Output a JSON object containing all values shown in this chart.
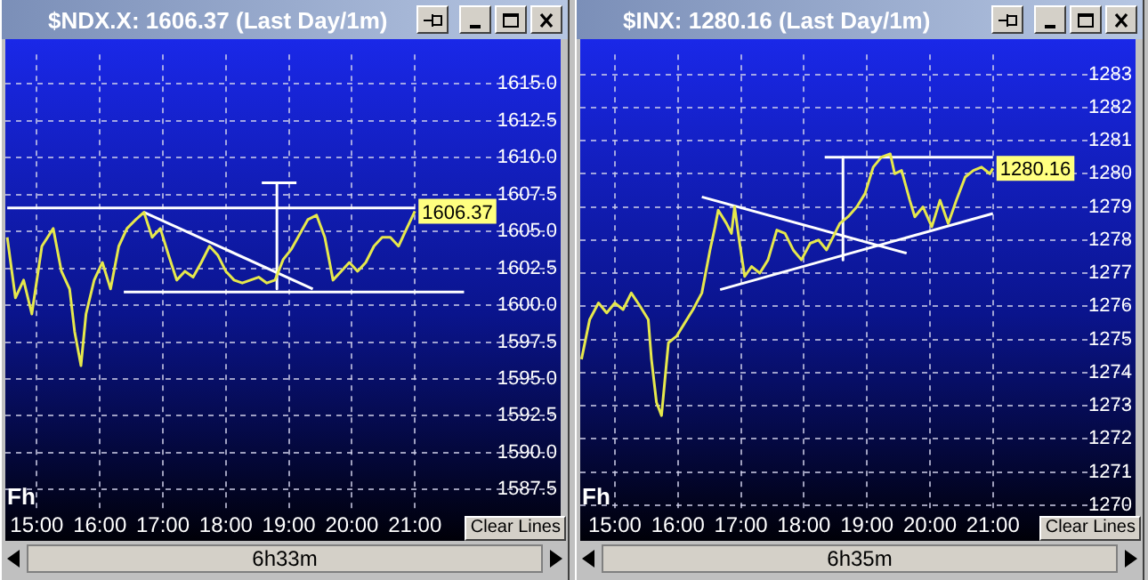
{
  "chart_data": [
    {
      "type": "line",
      "title": "$NDX.X: 1606.37 (Last Day/1m)",
      "xlim": [
        14.5,
        23.2
      ],
      "ylim": [
        1586,
        1617
      ],
      "xticks": [
        {
          "value": 15,
          "label": "15:00"
        },
        {
          "value": 16,
          "label": "16:00"
        },
        {
          "value": 17,
          "label": "17:00"
        },
        {
          "value": 18,
          "label": "18:00"
        },
        {
          "value": 19,
          "label": "19:00"
        },
        {
          "value": 20,
          "label": "20:00"
        },
        {
          "value": 21,
          "label": "21:00"
        }
      ],
      "yticks": [
        {
          "value": 1587.5,
          "label": "1587.5"
        },
        {
          "value": 1590,
          "label": "1590.0"
        },
        {
          "value": 1592.5,
          "label": "1592.5"
        },
        {
          "value": 1595,
          "label": "1595.0"
        },
        {
          "value": 1597.5,
          "label": "1597.5"
        },
        {
          "value": 1600,
          "label": "1600.0"
        },
        {
          "value": 1602.5,
          "label": "1602.5"
        },
        {
          "value": 1605,
          "label": "1605.0"
        },
        {
          "value": 1607.5,
          "label": "1607.5"
        },
        {
          "value": 1610,
          "label": "1610.0"
        },
        {
          "value": 1612.5,
          "label": "1612.5"
        },
        {
          "value": 1615,
          "label": "1615.0"
        }
      ],
      "grid": true,
      "marker": "none",
      "annotations": [
        {
          "text": "1606.37",
          "x": 21,
          "y": 1606.37
        },
        "Fh",
        "Clear Lines",
        "6h33m"
      ],
      "series": [
        {
          "color": "#e6e84c",
          "x": [
            14.53,
            14.66,
            14.79,
            14.92,
            15.08,
            15.26,
            15.39,
            15.52,
            15.6,
            15.7,
            15.78,
            15.91,
            16.04,
            16.17,
            16.3,
            16.43,
            16.57,
            16.7,
            16.83,
            16.96,
            17.09,
            17.22,
            17.35,
            17.48,
            17.61,
            17.74,
            17.87,
            18,
            18.13,
            18.26,
            18.52,
            18.65,
            18.78,
            18.91,
            19.04,
            19.3,
            19.44,
            19.57,
            19.7,
            19.83,
            19.96,
            20.09,
            20.22,
            20.35,
            20.48,
            20.61,
            20.74,
            20.87,
            21
          ],
          "values": [
            1604.6,
            1600.5,
            1601.7,
            1599.4,
            1604.0,
            1605.2,
            1602.3,
            1601.1,
            1598.2,
            1595.9,
            1599.4,
            1601.7,
            1602.9,
            1601.1,
            1604.0,
            1605.2,
            1605.8,
            1606.3,
            1604.6,
            1605.2,
            1603.4,
            1601.7,
            1602.3,
            1601.9,
            1602.9,
            1604.0,
            1603.4,
            1602.3,
            1601.7,
            1601.5,
            1601.9,
            1601.5,
            1601.7,
            1603.1,
            1603.8,
            1605.8,
            1606.1,
            1604.6,
            1601.7,
            1602.3,
            1602.9,
            1602.3,
            1602.9,
            1604.0,
            1604.6,
            1604.6,
            1604.0,
            1605.2,
            1606.37
          ]
        },
        {
          "color": "#ffffff",
          "x": [
            14.53,
            21
          ],
          "values": [
            1606.6,
            1606.6
          ]
        },
        {
          "color": "#ffffff",
          "x": [
            16.38,
            21.78
          ],
          "values": [
            1600.9,
            1600.9
          ]
        },
        {
          "color": "#ffffff",
          "x": [
            16.7,
            19.38
          ],
          "values": [
            1606.3,
            1601.1
          ]
        },
        {
          "color": "#ffffff",
          "x": [
            18.81,
            18.81
          ],
          "values": [
            1608.3,
            1601.1
          ]
        },
        {
          "color": "#ffffff",
          "x": [
            18.57,
            19.12
          ],
          "values": [
            1608.3,
            1608.3
          ]
        }
      ]
    },
    {
      "type": "line",
      "title": "$INX: 1280.16 (Last Day/1m)",
      "xlim": [
        14.45,
        23.15
      ],
      "ylim": [
        1269.8,
        1283.6
      ],
      "xticks": [
        {
          "value": 15,
          "label": "15:00"
        },
        {
          "value": 16,
          "label": "16:00"
        },
        {
          "value": 17,
          "label": "17:00"
        },
        {
          "value": 18,
          "label": "18:00"
        },
        {
          "value": 19,
          "label": "19:00"
        },
        {
          "value": 20,
          "label": "20:00"
        },
        {
          "value": 21,
          "label": "21:00"
        }
      ],
      "yticks": [
        1270,
        1271,
        1272,
        1273,
        1274,
        1275,
        1276,
        1277,
        1278,
        1279,
        1280,
        1281,
        1282,
        1283
      ],
      "grid": true,
      "marker": "none",
      "annotations": [
        {
          "text": "1280.16",
          "x": 21,
          "y": 1280.16
        },
        "Fh",
        "Clear Lines",
        "6h35m"
      ],
      "series": [
        {
          "color": "#e6e84c",
          "x": [
            14.47,
            14.6,
            14.74,
            14.87,
            15,
            15.13,
            15.26,
            15.4,
            15.53,
            15.58,
            15.66,
            15.74,
            15.85,
            15.98,
            16.11,
            16.24,
            16.38,
            16.51,
            16.59,
            16.64,
            16.77,
            16.85,
            16.9,
            16.98,
            17.06,
            17.17,
            17.3,
            17.43,
            17.57,
            17.7,
            17.83,
            17.96,
            18.1,
            18.23,
            18.36,
            18.57,
            18.7,
            18.84,
            18.97,
            19.1,
            19.23,
            19.37,
            19.44,
            19.55,
            19.68,
            19.76,
            19.89,
            20.03,
            20.16,
            20.29,
            20.42,
            20.56,
            20.69,
            20.82,
            20.95,
            21
          ],
          "values": [
            1274.4,
            1275.6,
            1276.1,
            1275.8,
            1276.1,
            1275.9,
            1276.4,
            1276.0,
            1275.6,
            1274.4,
            1273.1,
            1272.7,
            1274.9,
            1275.1,
            1275.5,
            1275.9,
            1276.4,
            1277.7,
            1278.4,
            1278.9,
            1278.5,
            1278.2,
            1279.0,
            1277.9,
            1276.9,
            1277.2,
            1277.0,
            1277.4,
            1278.3,
            1278.2,
            1277.7,
            1277.4,
            1277.9,
            1278.0,
            1277.7,
            1278.5,
            1278.7,
            1279.0,
            1279.4,
            1280.2,
            1280.5,
            1280.6,
            1280.0,
            1280.1,
            1279.2,
            1278.7,
            1279.0,
            1278.4,
            1279.2,
            1278.5,
            1279.2,
            1279.9,
            1280.1,
            1280.2,
            1280.0,
            1280.16
          ]
        },
        {
          "color": "#ffffff",
          "x": [
            18.33,
            21
          ],
          "values": [
            1280.5,
            1280.5
          ]
        },
        {
          "color": "#ffffff",
          "x": [
            18.62,
            18.62
          ],
          "values": [
            1280.5,
            1277.4
          ]
        },
        {
          "color": "#ffffff",
          "x": [
            16.38,
            19.63
          ],
          "values": [
            1279.3,
            1277.6
          ]
        },
        {
          "color": "#ffffff",
          "x": [
            16.67,
            21
          ],
          "values": [
            1276.5,
            1278.8
          ]
        }
      ]
    }
  ]
}
